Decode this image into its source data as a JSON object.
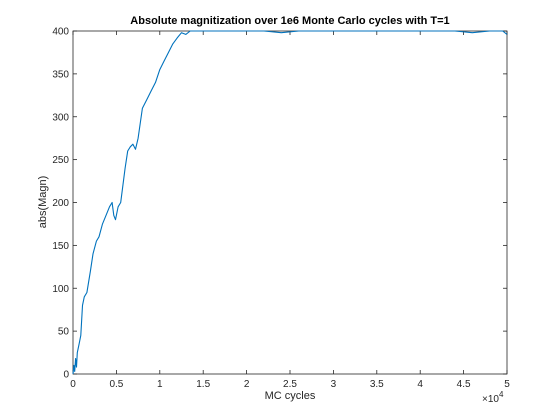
{
  "chart_data": {
    "type": "line",
    "title": "Absolute magnitization over 1e6 Monte Carlo cycles with T=1",
    "xlabel": "MC cycles",
    "ylabel": "abs(Magn)",
    "x_exponent_label": "×10",
    "x_exponent_power": "4",
    "xlim": [
      0,
      50000
    ],
    "ylim": [
      0,
      400
    ],
    "xticks": [
      0,
      5000,
      10000,
      15000,
      20000,
      25000,
      30000,
      35000,
      40000,
      45000,
      50000
    ],
    "xtick_labels": [
      "0",
      "0.5",
      "1",
      "1.5",
      "2",
      "2.5",
      "3",
      "3.5",
      "4",
      "4.5",
      "5"
    ],
    "yticks": [
      0,
      50,
      100,
      150,
      200,
      250,
      300,
      350,
      400
    ],
    "ytick_labels": [
      "0",
      "50",
      "100",
      "150",
      "200",
      "250",
      "300",
      "350",
      "400"
    ],
    "grid": false,
    "series_color": "#0072bd",
    "series": [
      {
        "x": [
          0,
          100,
          200,
          300,
          400,
          500,
          700,
          900,
          1100,
          1300,
          1600,
          2000,
          2300,
          2700,
          3000,
          3400,
          3800,
          4200,
          4500,
          4700,
          4900,
          5200,
          5500,
          6000,
          6300,
          6600,
          6900,
          7200,
          7500,
          8000,
          8500,
          9000,
          9500,
          10000,
          10500,
          11000,
          11500,
          12000,
          12500,
          13000,
          13500,
          14000,
          14500,
          16000,
          18000,
          20000,
          22000,
          24000,
          26000,
          28000,
          30000,
          32000,
          34000,
          36000,
          38000,
          40000,
          42000,
          44000,
          46000,
          48000,
          49500,
          50000
        ],
        "y": [
          0,
          10,
          3,
          18,
          8,
          25,
          35,
          45,
          80,
          90,
          95,
          120,
          140,
          155,
          160,
          175,
          185,
          195,
          200,
          185,
          180,
          195,
          200,
          240,
          260,
          265,
          268,
          262,
          275,
          310,
          320,
          330,
          340,
          355,
          365,
          375,
          385,
          392,
          398,
          396,
          400,
          400,
          400,
          400,
          400,
          400,
          400,
          398,
          400,
          400,
          400,
          400,
          400,
          400,
          400,
          400,
          400,
          400,
          398,
          400,
          400,
          396
        ]
      }
    ]
  }
}
